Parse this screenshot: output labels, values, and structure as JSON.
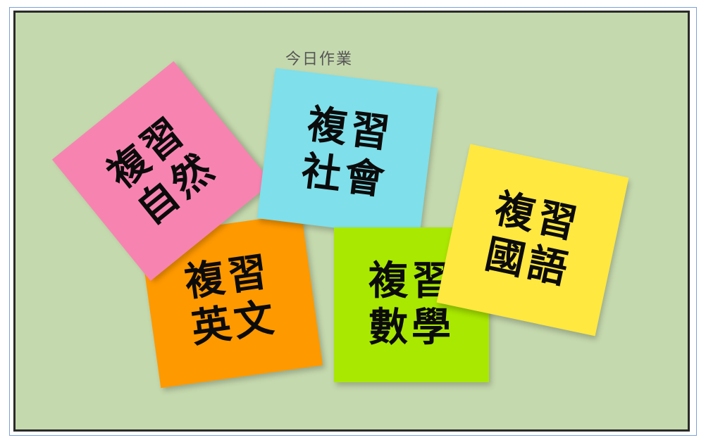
{
  "board": {
    "title": "今日作業",
    "background": "#c5d9ae"
  },
  "notes": [
    {
      "id": "english",
      "line1": "複習",
      "line2": "英文",
      "color": "#ff9900"
    },
    {
      "id": "nature",
      "line1": "複習",
      "line2": "自然",
      "color": "#f784b0"
    },
    {
      "id": "social",
      "line1": "複習",
      "line2": "社會",
      "color": "#7fdfea"
    },
    {
      "id": "math",
      "line1": "複習",
      "line2": "數學",
      "color": "#a9e800"
    },
    {
      "id": "chinese",
      "line1": "複習",
      "line2": "國語",
      "color": "#ffe840"
    }
  ]
}
